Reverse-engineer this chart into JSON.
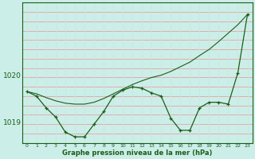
{
  "title": "Graphe pression niveau de la mer (hPa)",
  "bg_color": "#cceee8",
  "grid_color_h": "#e8a0a0",
  "grid_color_v": "#c8e8e0",
  "line_color": "#1a5e1a",
  "x_labels": [
    "0",
    "1",
    "2",
    "3",
    "4",
    "5",
    "6",
    "7",
    "8",
    "9",
    "10",
    "11",
    "12",
    "13",
    "14",
    "15",
    "16",
    "17",
    "18",
    "19",
    "20",
    "21",
    "22",
    "23"
  ],
  "wavy_y": [
    1019.65,
    1019.55,
    1019.3,
    1019.1,
    1018.78,
    1018.68,
    1018.68,
    1018.95,
    1019.22,
    1019.55,
    1019.68,
    1019.75,
    1019.72,
    1019.62,
    1019.55,
    1019.08,
    1018.82,
    1018.82,
    1019.3,
    1019.42,
    1019.42,
    1019.38,
    1020.05,
    1021.3
  ],
  "smooth_y": [
    1019.65,
    1019.6,
    1019.52,
    1019.45,
    1019.4,
    1019.38,
    1019.38,
    1019.42,
    1019.5,
    1019.6,
    1019.7,
    1019.8,
    1019.88,
    1019.95,
    1020.0,
    1020.08,
    1020.18,
    1020.28,
    1020.42,
    1020.55,
    1020.72,
    1020.9,
    1021.08,
    1021.3
  ],
  "ylim_min": 1018.55,
  "ylim_max": 1021.55,
  "ytick_positions": [
    1019.0,
    1020.0
  ],
  "ytick_labels": [
    "1019",
    "1020"
  ],
  "xlabel_fontsize": 6.0,
  "xtick_fontsize": 4.5,
  "ytick_fontsize": 6.5
}
